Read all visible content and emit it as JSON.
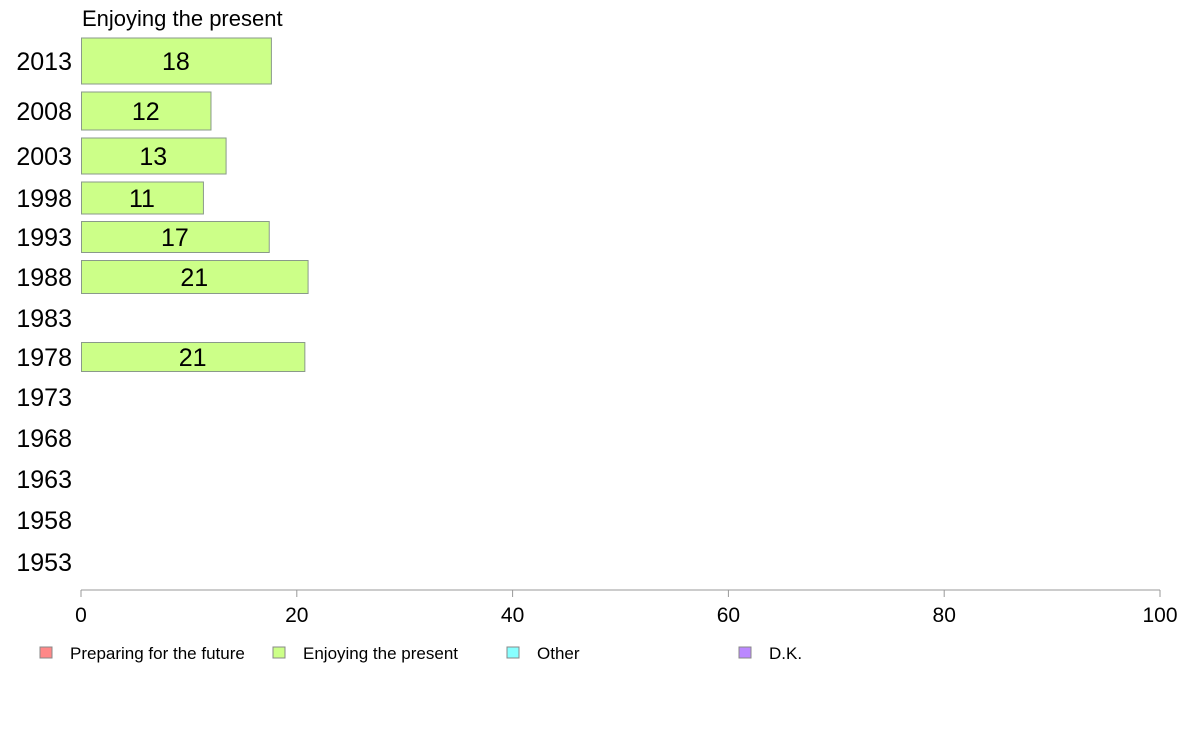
{
  "chart_data": {
    "type": "bar",
    "orientation": "horizontal",
    "panel_title": "Enjoying the present",
    "categories": [
      "2013",
      "2008",
      "2003",
      "1998",
      "1993",
      "1988",
      "1983",
      "1978",
      "1973",
      "1968",
      "1963",
      "1958",
      "1953"
    ],
    "series": [
      {
        "name": "Enjoying the present",
        "color": "#ccff88",
        "values": [
          17.6,
          12,
          13.4,
          11.3,
          17.4,
          21,
          null,
          20.7,
          null,
          null,
          null,
          null,
          null
        ],
        "labels": [
          "18",
          "12",
          "13",
          "11",
          "17",
          "21",
          "",
          "21",
          "",
          "",
          "",
          "",
          ""
        ]
      }
    ],
    "xlim": [
      0,
      100
    ],
    "xticks": [
      "0",
      "20",
      "40",
      "60",
      "80",
      "100"
    ],
    "grid": false,
    "legend_position": "bottom",
    "legend": [
      {
        "label": "Preparing for the future",
        "color": "#ff8888"
      },
      {
        "label": "Enjoying the present",
        "color": "#ccff88"
      },
      {
        "label": "Other",
        "color": "#88ffff"
      },
      {
        "label": "D.K.",
        "color": "#bb88ff"
      }
    ]
  }
}
